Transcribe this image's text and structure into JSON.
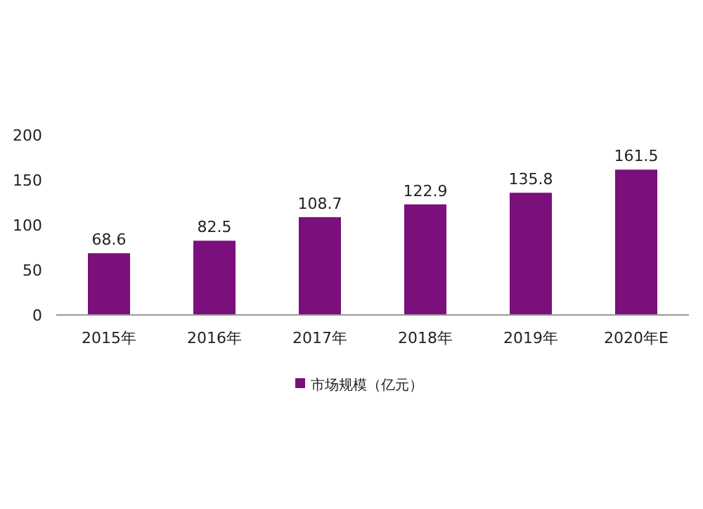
{
  "chart_data": {
    "type": "bar",
    "categories": [
      "2015年",
      "2016年",
      "2017年",
      "2018年",
      "2019年",
      "2020年E"
    ],
    "series": [
      {
        "name": "市场规模（亿元）",
        "color": "#7b0f7b",
        "values": [
          68.6,
          82.5,
          108.7,
          122.9,
          135.8,
          161.5
        ]
      }
    ],
    "ylim": [
      0,
      200
    ],
    "yticks": [
      0,
      50,
      100,
      150,
      200
    ],
    "data_labels": true,
    "legend": "bottom",
    "grid": false
  }
}
